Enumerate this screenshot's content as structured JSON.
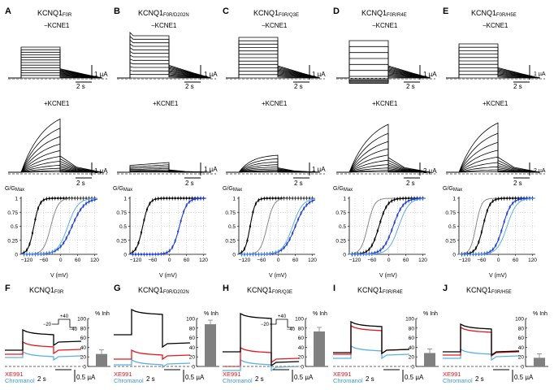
{
  "panels_top": [
    {
      "letter": "A",
      "title": "KCNQ1",
      "sub": "F0R",
      "minus": "−KCNE1",
      "plus": "+KCNE1",
      "bar_minus": "1 µA",
      "bar_plus": "1 µA",
      "time": "2 s"
    },
    {
      "letter": "B",
      "title": "KCNQ1",
      "sub": "F0R/D202N",
      "minus": "−KCNE1",
      "plus": "+KCNE1",
      "bar_minus": "1 µA",
      "bar_plus": "1 µA",
      "time": "2 s"
    },
    {
      "letter": "C",
      "title": "KCNQ1",
      "sub": "F0R/Q3E",
      "minus": "−KCNE1",
      "plus": "+KCNE1",
      "bar_minus": "1 µA",
      "bar_plus": "1 µA",
      "time": "2 s"
    },
    {
      "letter": "D",
      "title": "KCNQ1",
      "sub": "F0R/R4E",
      "minus": "−KCNE1",
      "plus": "+KCNE1",
      "bar_minus": "1 µA",
      "bar_plus": "2 µA",
      "time": "2 s"
    },
    {
      "letter": "E",
      "title": "KCNQ1",
      "sub": "F0R/H5E",
      "minus": "−KCNE1",
      "plus": "+KCNE1",
      "bar_minus": "1 µA",
      "bar_plus": "2 µA",
      "time": "2 s"
    }
  ],
  "panels_bottom": [
    {
      "letter": "F",
      "title": "KCNQ1",
      "sub": "F0R",
      "inh": 26
    },
    {
      "letter": "G",
      "title": "KCNQ1",
      "sub": "F0R/D202N",
      "inh": 88
    },
    {
      "letter": "H",
      "title": "KCNQ1",
      "sub": "F0R/Q3E",
      "inh": 73
    },
    {
      "letter": "I",
      "title": "KCNQ1",
      "sub": "F0R/R4E",
      "inh": 28
    },
    {
      "letter": "J",
      "title": "KCNQ1",
      "sub": "F0R/H5E",
      "inh": 18
    }
  ],
  "bottom_labels": {
    "xe991": "XE991",
    "chromanol": "Chromanol",
    "time": "2 s",
    "amp": "0.5 µA",
    "inh_axis": "% Inh",
    "inh_ticks": [
      "100",
      "80",
      "60",
      "40",
      "20",
      "0"
    ],
    "proto_top": "+40",
    "proto_left": "−20",
    "proto_bottom": "−40"
  },
  "gv_labels": {
    "ylabel": "G/G",
    "ylabel_sub": "Max",
    "xlabel": "V (mV)",
    "yticks": [
      "1",
      "0.75",
      "0.5",
      "0.25",
      "0"
    ],
    "xticks": [
      "−120",
      "−60",
      "0",
      "60",
      "120"
    ]
  },
  "chart_data": [
    {
      "type": "line",
      "panel": "A",
      "xlabel": "V (mV)",
      "ylabel": "G/GMax",
      "xlim": [
        -140,
        130
      ],
      "ylim": [
        0,
        1
      ],
      "series": [
        {
          "color": "#000000",
          "v_half": -95,
          "slope": 10
        },
        {
          "color": "#888888",
          "v_half": -35,
          "slope": 13
        },
        {
          "color": "#1f3fd6",
          "v_half": 40,
          "slope": 22
        },
        {
          "color": "#5ab0e8",
          "v_half": 25,
          "slope": 18
        }
      ]
    },
    {
      "type": "line",
      "panel": "B",
      "xlabel": "V (mV)",
      "ylabel": "G/GMax",
      "xlim": [
        -140,
        130
      ],
      "ylim": [
        0,
        1
      ],
      "series": [
        {
          "color": "#000000",
          "v_half": -95,
          "slope": 11
        },
        {
          "color": "#1f3fd6",
          "v_half": 35,
          "slope": 13
        }
      ]
    },
    {
      "type": "line",
      "panel": "C",
      "xlabel": "V (mV)",
      "ylabel": "G/GMax",
      "xlim": [
        -140,
        130
      ],
      "ylim": [
        0,
        1
      ],
      "series": [
        {
          "color": "#000000",
          "v_half": -100,
          "slope": 9
        },
        {
          "color": "#888888",
          "v_half": -40,
          "slope": 12
        },
        {
          "color": "#1f3fd6",
          "v_half": 60,
          "slope": 20
        },
        {
          "color": "#5ab0e8",
          "v_half": 50,
          "slope": 18
        }
      ]
    },
    {
      "type": "line",
      "panel": "D",
      "xlabel": "V (mV)",
      "ylabel": "G/GMax",
      "xlim": [
        -140,
        130
      ],
      "ylim": [
        0,
        1
      ],
      "series": [
        {
          "color": "#888888",
          "v_half": -75,
          "slope": 12
        },
        {
          "color": "#000000",
          "v_half": -35,
          "slope": 15
        },
        {
          "color": "#1f3fd6",
          "v_half": 15,
          "slope": 18
        },
        {
          "color": "#5ab0e8",
          "v_half": 35,
          "slope": 18
        }
      ]
    },
    {
      "type": "line",
      "panel": "E",
      "xlabel": "V (mV)",
      "ylabel": "G/GMax",
      "xlim": [
        -140,
        130
      ],
      "ylim": [
        0,
        1
      ],
      "series": [
        {
          "color": "#888888",
          "v_half": -80,
          "slope": 10
        },
        {
          "color": "#000000",
          "v_half": -55,
          "slope": 12
        },
        {
          "color": "#1f3fd6",
          "v_half": 15,
          "slope": 15
        },
        {
          "color": "#5ab0e8",
          "v_half": 30,
          "slope": 17
        }
      ]
    },
    {
      "type": "bar",
      "panel": "F",
      "ylabel": "% Inh",
      "ylim": [
        0,
        100
      ],
      "values": [
        26
      ]
    },
    {
      "type": "bar",
      "panel": "G",
      "ylabel": "% Inh",
      "ylim": [
        0,
        100
      ],
      "values": [
        88
      ]
    },
    {
      "type": "bar",
      "panel": "H",
      "ylabel": "% Inh",
      "ylim": [
        0,
        100
      ],
      "values": [
        73
      ]
    },
    {
      "type": "bar",
      "panel": "I",
      "ylabel": "% Inh",
      "ylim": [
        0,
        100
      ],
      "values": [
        28
      ]
    },
    {
      "type": "bar",
      "panel": "J",
      "ylabel": "% Inh",
      "ylim": [
        0,
        100
      ],
      "values": [
        18
      ]
    }
  ]
}
